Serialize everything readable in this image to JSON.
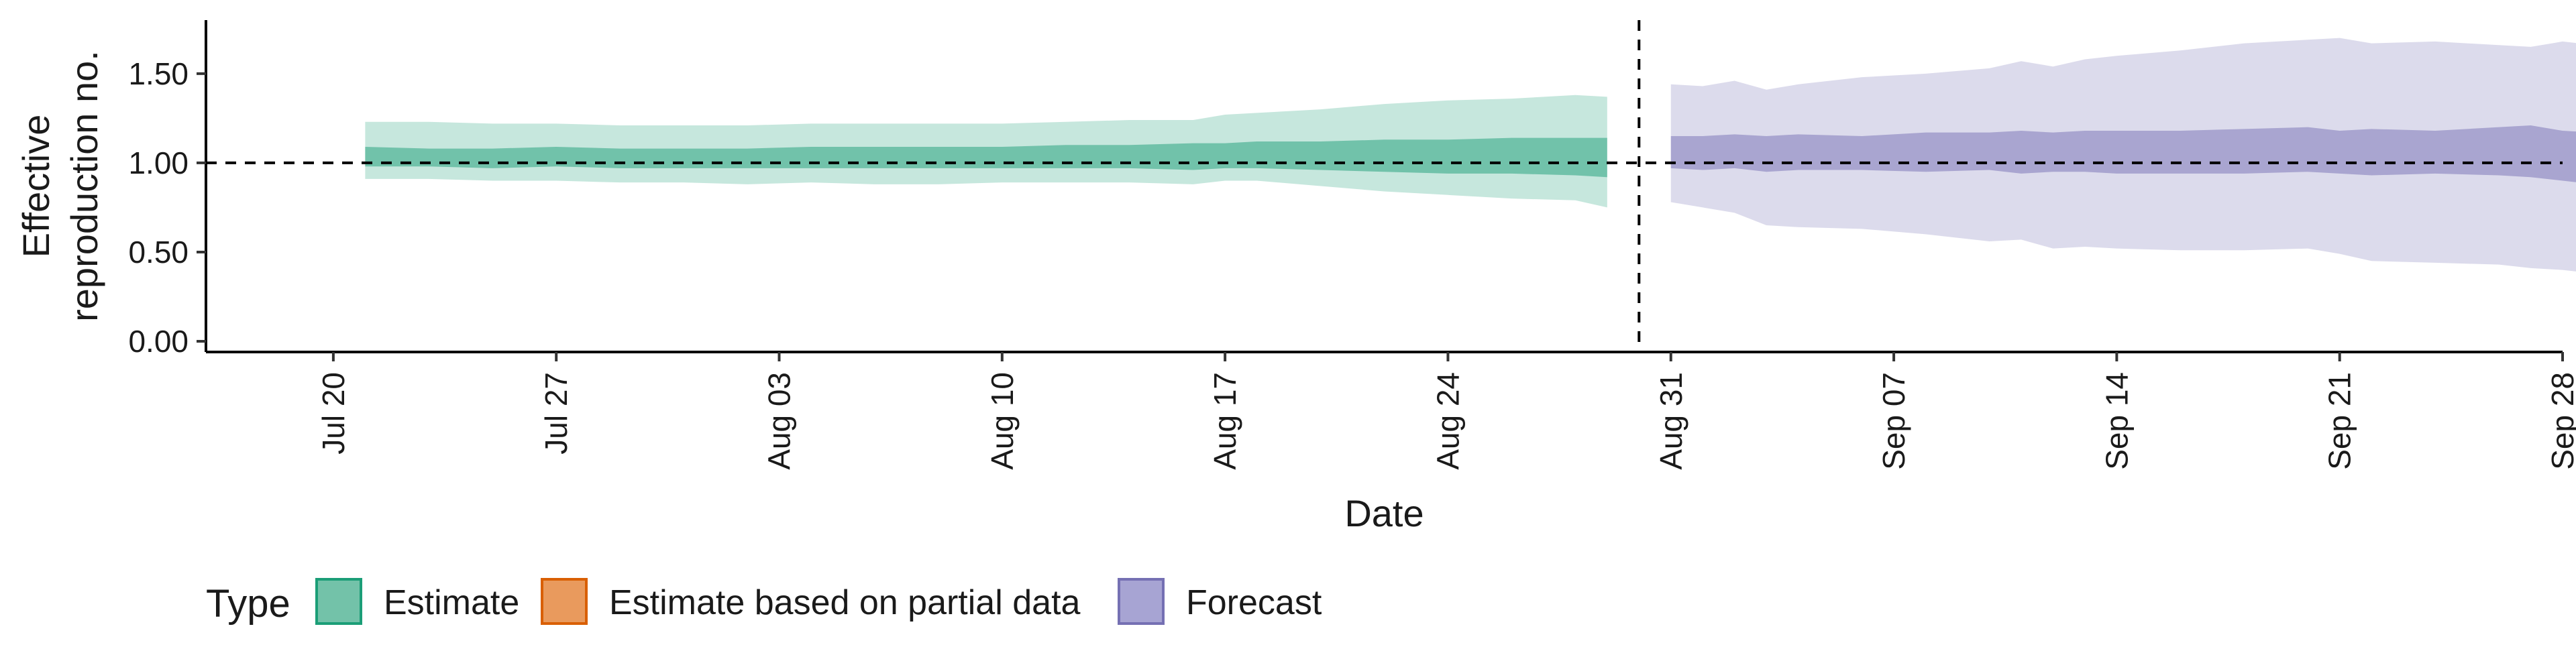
{
  "chart_data": {
    "type": "area",
    "ylabel_lines": [
      "Effective",
      "reproduction no."
    ],
    "xlabel": "Date",
    "ylim": [
      -0.06,
      1.8
    ],
    "yticks": [
      0.0,
      0.5,
      1.0,
      1.5
    ],
    "ytick_labels": [
      "0.00",
      "0.50",
      "1.00",
      "1.50"
    ],
    "xlim_days": [
      -4,
      70
    ],
    "x_start_date": "2020-07-20",
    "xticks": [
      {
        "day": 0,
        "label": "Jul 20"
      },
      {
        "day": 7,
        "label": "Jul 27"
      },
      {
        "day": 14,
        "label": "Aug 03"
      },
      {
        "day": 21,
        "label": "Aug 10"
      },
      {
        "day": 28,
        "label": "Aug 17"
      },
      {
        "day": 35,
        "label": "Aug 24"
      },
      {
        "day": 42,
        "label": "Aug 31"
      },
      {
        "day": 49,
        "label": "Sep 07"
      },
      {
        "day": 56,
        "label": "Sep 14"
      },
      {
        "day": 63,
        "label": "Sep 21"
      },
      {
        "day": 70,
        "label": "Sep 28"
      }
    ],
    "reference_hline": 1.0,
    "reference_vline_day": 41.0,
    "series": [
      {
        "name": "Estimate",
        "color": "#1b9e77",
        "x_days": [
          1,
          3,
          5,
          7,
          9,
          11,
          13,
          15,
          17,
          19,
          21,
          23,
          25,
          27,
          28,
          29,
          31,
          33,
          35,
          37,
          39,
          40
        ],
        "lower90": [
          0.91,
          0.91,
          0.9,
          0.9,
          0.89,
          0.89,
          0.88,
          0.89,
          0.88,
          0.88,
          0.89,
          0.89,
          0.89,
          0.88,
          0.9,
          0.9,
          0.87,
          0.84,
          0.82,
          0.8,
          0.79,
          0.75
        ],
        "upper90": [
          1.23,
          1.23,
          1.22,
          1.22,
          1.21,
          1.21,
          1.21,
          1.22,
          1.22,
          1.22,
          1.22,
          1.23,
          1.24,
          1.24,
          1.27,
          1.28,
          1.3,
          1.33,
          1.35,
          1.36,
          1.38,
          1.37
        ],
        "lower50": [
          0.98,
          0.98,
          0.97,
          0.98,
          0.97,
          0.97,
          0.97,
          0.97,
          0.97,
          0.97,
          0.97,
          0.97,
          0.97,
          0.96,
          0.97,
          0.97,
          0.96,
          0.95,
          0.94,
          0.94,
          0.93,
          0.92
        ],
        "upper50": [
          1.09,
          1.08,
          1.08,
          1.09,
          1.08,
          1.08,
          1.08,
          1.09,
          1.09,
          1.09,
          1.09,
          1.1,
          1.1,
          1.11,
          1.11,
          1.12,
          1.12,
          1.13,
          1.13,
          1.14,
          1.14,
          1.14
        ]
      },
      {
        "name": "Estimate based on partial data",
        "color": "#d95f02",
        "x_days": [],
        "lower90": [],
        "upper90": [],
        "lower50": [],
        "upper50": []
      },
      {
        "name": "Forecast",
        "color": "#7570b3",
        "x_days": [
          42,
          43,
          44,
          45,
          46,
          48,
          50,
          52,
          53,
          54,
          55,
          56,
          58,
          60,
          62,
          63,
          64,
          66,
          68,
          69,
          70,
          71
        ],
        "lower90": [
          0.78,
          0.75,
          0.72,
          0.65,
          0.64,
          0.63,
          0.6,
          0.56,
          0.57,
          0.52,
          0.53,
          0.52,
          0.51,
          0.51,
          0.52,
          0.49,
          0.45,
          0.44,
          0.43,
          0.41,
          0.4,
          0.38
        ],
        "upper90": [
          1.44,
          1.43,
          1.46,
          1.41,
          1.44,
          1.48,
          1.5,
          1.53,
          1.57,
          1.54,
          1.58,
          1.6,
          1.63,
          1.67,
          1.69,
          1.7,
          1.67,
          1.68,
          1.66,
          1.65,
          1.68,
          1.66
        ],
        "lower50": [
          0.97,
          0.96,
          0.97,
          0.95,
          0.96,
          0.96,
          0.95,
          0.96,
          0.94,
          0.95,
          0.95,
          0.94,
          0.94,
          0.94,
          0.95,
          0.94,
          0.93,
          0.94,
          0.93,
          0.92,
          0.9,
          0.88
        ],
        "upper50": [
          1.15,
          1.15,
          1.16,
          1.15,
          1.16,
          1.15,
          1.17,
          1.17,
          1.18,
          1.17,
          1.18,
          1.18,
          1.18,
          1.19,
          1.2,
          1.18,
          1.19,
          1.18,
          1.2,
          1.21,
          1.18,
          1.17
        ]
      }
    ],
    "legend": {
      "title": "Type",
      "position": "bottom-left",
      "entries": [
        {
          "label": "Estimate",
          "fill": "#73c2a9",
          "stroke": "#1b9e77"
        },
        {
          "label": "Estimate based on partial data",
          "fill": "#e99a5d",
          "stroke": "#d95f02"
        },
        {
          "label": "Forecast",
          "fill": "#a7a4d3",
          "stroke": "#7570b3"
        }
      ]
    },
    "grid": false
  }
}
